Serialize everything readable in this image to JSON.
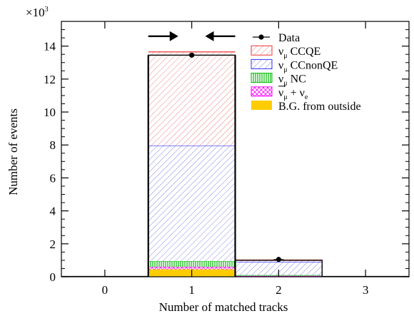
{
  "chart_data": {
    "type": "bar",
    "stacked": true,
    "xlabel": "Number of matched tracks",
    "ylabel": "Number of events",
    "y_multiplier": "×10",
    "y_multiplier_exp": "3",
    "categories": [
      "0",
      "1",
      "2",
      "3"
    ],
    "xlim": [
      -0.5,
      3.5
    ],
    "ylim": [
      0,
      15.5
    ],
    "yticks": [
      "0",
      "2",
      "4",
      "6",
      "8",
      "10",
      "12",
      "14"
    ],
    "series": [
      {
        "key": "bg",
        "name": "B.G. from outside",
        "values": [
          0,
          0.45,
          0.02,
          0
        ],
        "color": "#ffcc00",
        "pattern": "solid"
      },
      {
        "key": "nuebar",
        "name_parts": [
          "ν",
          "μ",
          " + ν",
          "e"
        ],
        "values": [
          0,
          0.15,
          0.03,
          0
        ],
        "color": "#ff00ff",
        "pattern": "crosshatch"
      },
      {
        "key": "nc",
        "name_parts": [
          "ν",
          "μ",
          " NC"
        ],
        "values": [
          0,
          0.35,
          0.05,
          0
        ],
        "color": "#00bb00",
        "pattern": "vertical"
      },
      {
        "key": "ccnonqe",
        "name_parts": [
          "ν",
          "μ",
          " CCnonQE"
        ],
        "values": [
          0,
          7.0,
          0.8,
          0
        ],
        "color": "#3333ff",
        "pattern": "hatch"
      },
      {
        "key": "ccqe",
        "name_parts": [
          "ν",
          "μ",
          " CCQE"
        ],
        "values": [
          0,
          5.7,
          0.12,
          0
        ],
        "color": "#ee3333",
        "pattern": "hatch"
      }
    ],
    "data_series": {
      "name": "Data",
      "values": [
        null,
        13.45,
        1.05,
        null
      ]
    },
    "total_outline": [
      0.02,
      13.45,
      1.0,
      0.02
    ],
    "selection": {
      "bin": "1",
      "marker": "arrows"
    },
    "legend_position": "top-right"
  }
}
